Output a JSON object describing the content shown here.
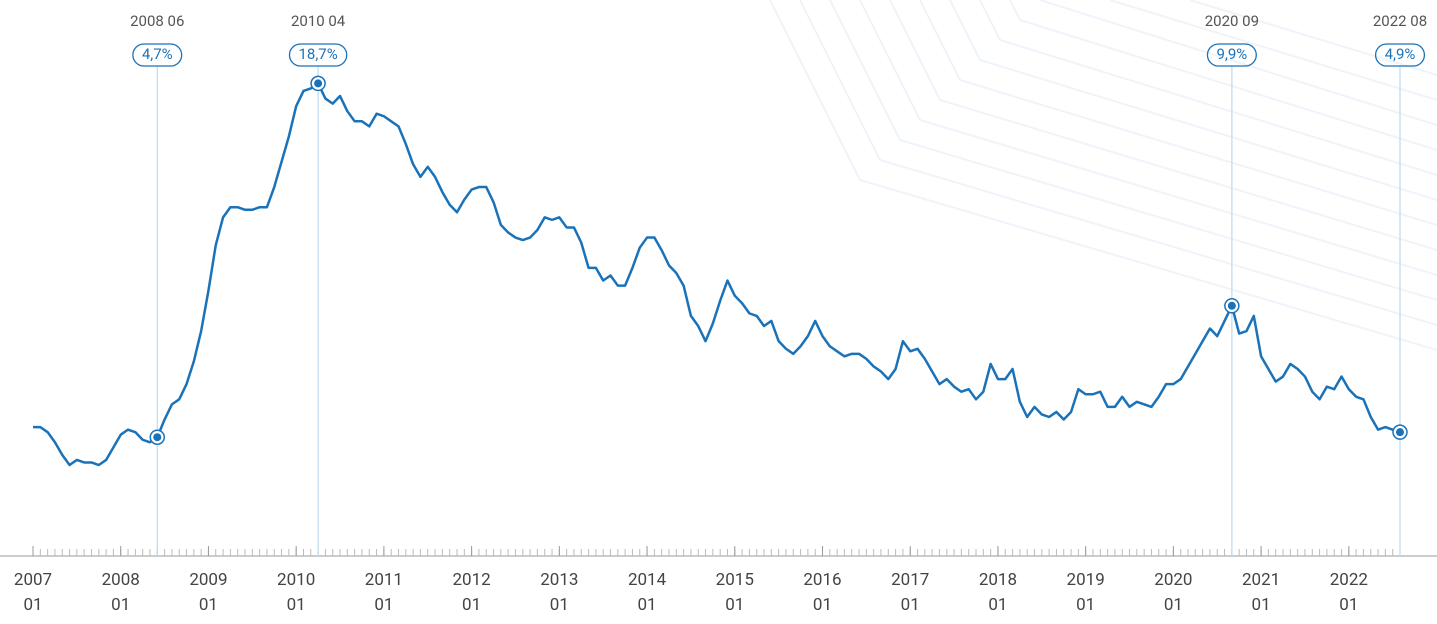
{
  "chart_data": {
    "type": "line",
    "categories": [
      "2007 01",
      "2007 02",
      "2007 03",
      "2007 04",
      "2007 05",
      "2007 06",
      "2007 07",
      "2007 08",
      "2007 09",
      "2007 10",
      "2007 11",
      "2007 12",
      "2008 01",
      "2008 02",
      "2008 03",
      "2008 04",
      "2008 05",
      "2008 06",
      "2008 07",
      "2008 08",
      "2008 09",
      "2008 10",
      "2008 11",
      "2008 12",
      "2009 01",
      "2009 02",
      "2009 03",
      "2009 04",
      "2009 05",
      "2009 06",
      "2009 07",
      "2009 08",
      "2009 09",
      "2009 10",
      "2009 11",
      "2009 12",
      "2010 01",
      "2010 02",
      "2010 03",
      "2010 04",
      "2010 05",
      "2010 06",
      "2010 07",
      "2010 08",
      "2010 09",
      "2010 10",
      "2010 11",
      "2010 12",
      "2011 01",
      "2011 02",
      "2011 03",
      "2011 04",
      "2011 05",
      "2011 06",
      "2011 07",
      "2011 08",
      "2011 09",
      "2011 10",
      "2011 11",
      "2011 12",
      "2012 01",
      "2012 02",
      "2012 03",
      "2012 04",
      "2012 05",
      "2012 06",
      "2012 07",
      "2012 08",
      "2012 09",
      "2012 10",
      "2012 11",
      "2012 12",
      "2013 01",
      "2013 02",
      "2013 03",
      "2013 04",
      "2013 05",
      "2013 06",
      "2013 07",
      "2013 08",
      "2013 09",
      "2013 10",
      "2013 11",
      "2013 12",
      "2014 01",
      "2014 02",
      "2014 03",
      "2014 04",
      "2014 05",
      "2014 06",
      "2014 07",
      "2014 08",
      "2014 09",
      "2014 10",
      "2014 11",
      "2014 12",
      "2015 01",
      "2015 02",
      "2015 03",
      "2015 04",
      "2015 05",
      "2015 06",
      "2015 07",
      "2015 08",
      "2015 09",
      "2015 10",
      "2015 11",
      "2015 12",
      "2016 01",
      "2016 02",
      "2016 03",
      "2016 04",
      "2016 05",
      "2016 06",
      "2016 07",
      "2016 08",
      "2016 09",
      "2016 10",
      "2016 11",
      "2016 12",
      "2017 01",
      "2017 02",
      "2017 03",
      "2017 04",
      "2017 05",
      "2017 06",
      "2017 07",
      "2017 08",
      "2017 09",
      "2017 10",
      "2017 11",
      "2017 12",
      "2018 01",
      "2018 02",
      "2018 03",
      "2018 04",
      "2018 05",
      "2018 06",
      "2018 07",
      "2018 08",
      "2018 09",
      "2018 10",
      "2018 11",
      "2018 12",
      "2019 01",
      "2019 02",
      "2019 03",
      "2019 04",
      "2019 05",
      "2019 06",
      "2019 07",
      "2019 08",
      "2019 09",
      "2019 10",
      "2019 11",
      "2019 12",
      "2020 01",
      "2020 02",
      "2020 03",
      "2020 04",
      "2020 05",
      "2020 06",
      "2020 07",
      "2020 08",
      "2020 09",
      "2020 10",
      "2020 11",
      "2020 12",
      "2021 01",
      "2021 02",
      "2021 03",
      "2021 04",
      "2021 05",
      "2021 06",
      "2021 07",
      "2021 08",
      "2021 09",
      "2021 10",
      "2021 11",
      "2021 12",
      "2022 01",
      "2022 02",
      "2022 03",
      "2022 04",
      "2022 05",
      "2022 06",
      "2022 07",
      "2022 08"
    ],
    "series": [
      {
        "color": "#1a72b9",
        "values": [
          5.1,
          5.1,
          4.9,
          4.5,
          4.0,
          3.6,
          3.8,
          3.7,
          3.7,
          3.6,
          3.8,
          4.3,
          4.8,
          5.0,
          4.9,
          4.6,
          4.5,
          4.7,
          5.4,
          6.0,
          6.2,
          6.8,
          7.7,
          8.9,
          10.5,
          12.3,
          13.4,
          13.8,
          13.8,
          13.7,
          13.7,
          13.8,
          13.8,
          14.6,
          15.6,
          16.6,
          17.8,
          18.4,
          18.5,
          18.7,
          18.1,
          17.9,
          18.2,
          17.6,
          17.2,
          17.2,
          17.0,
          17.5,
          17.4,
          17.2,
          17.0,
          16.3,
          15.5,
          15.0,
          15.4,
          15.0,
          14.4,
          13.9,
          13.6,
          14.1,
          14.5,
          14.6,
          14.6,
          14.0,
          13.1,
          12.8,
          12.6,
          12.5,
          12.6,
          12.9,
          13.4,
          13.3,
          13.4,
          13.0,
          13.0,
          12.4,
          11.4,
          11.4,
          10.9,
          11.1,
          10.7,
          10.7,
          11.4,
          12.2,
          12.6,
          12.6,
          12.1,
          11.5,
          11.2,
          10.7,
          9.5,
          9.1,
          8.5,
          9.2,
          10.1,
          10.9,
          10.3,
          10.0,
          9.6,
          9.5,
          9.1,
          9.3,
          8.5,
          8.2,
          8.0,
          8.3,
          8.7,
          9.3,
          8.7,
          8.3,
          8.1,
          7.9,
          8.0,
          8.0,
          7.8,
          7.5,
          7.3,
          7.0,
          7.4,
          8.5,
          8.1,
          8.2,
          7.8,
          7.3,
          6.8,
          7.0,
          6.7,
          6.5,
          6.6,
          6.2,
          6.5,
          7.6,
          7.0,
          7.0,
          7.4,
          6.1,
          5.5,
          5.9,
          5.6,
          5.5,
          5.7,
          5.4,
          5.7,
          6.6,
          6.4,
          6.4,
          6.5,
          5.9,
          5.9,
          6.3,
          5.9,
          6.1,
          6.0,
          5.9,
          6.3,
          6.8,
          6.8,
          7.0,
          7.5,
          8.0,
          8.5,
          9.0,
          8.7,
          9.3,
          9.9,
          8.8,
          8.9,
          9.5,
          7.9,
          7.4,
          6.9,
          7.1,
          7.6,
          7.4,
          7.1,
          6.5,
          6.2,
          6.7,
          6.6,
          7.1,
          6.6,
          6.3,
          6.2,
          5.5,
          5.0,
          5.1,
          5.0,
          4.9
        ]
      }
    ],
    "ylim": [
      0,
      22
    ],
    "xticks": [
      "2007 01",
      "2008 01",
      "2009 01",
      "2010 01",
      "2011 01",
      "2012 01",
      "2013 01",
      "2014 01",
      "2015 01",
      "2016 01",
      "2017 01",
      "2018 01",
      "2019 01",
      "2020 01",
      "2021 01",
      "2022 01"
    ],
    "annotations": [
      {
        "x": "2008 06",
        "label": "4,7%"
      },
      {
        "x": "2010 04",
        "label": "18,7%"
      },
      {
        "x": "2020 09",
        "label": "9,9%"
      },
      {
        "x": "2022 08",
        "label": "4,9%"
      }
    ]
  }
}
